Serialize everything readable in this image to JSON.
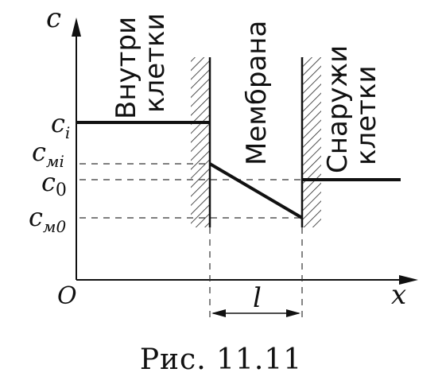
{
  "axes": {
    "y_label": "c",
    "x_label": "x",
    "origin_label": "O"
  },
  "levels": {
    "ci": {
      "base": "c",
      "sub": "i"
    },
    "cmi": {
      "base": "c",
      "sub": "мi"
    },
    "c0": {
      "base": "c",
      "sub": "0"
    },
    "cm0": {
      "base": "c",
      "sub": "м0"
    }
  },
  "regions": {
    "inside": [
      "Внутри",
      "клетки"
    ],
    "membrane": "Мембрана",
    "outside": [
      "Снаружи",
      "клетки"
    ]
  },
  "thickness_label": "l",
  "caption": "Рис. 11.11"
}
